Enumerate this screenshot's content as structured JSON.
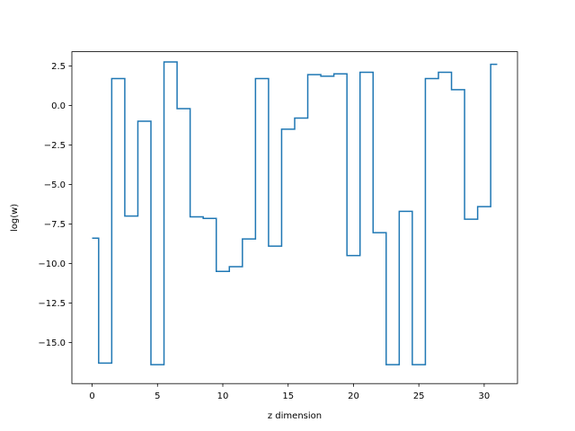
{
  "chart_data": {
    "type": "line",
    "drawstyle": "steps-mid",
    "title": "",
    "xlabel": "z dimension",
    "ylabel": "log(w)",
    "xlim": [
      -1.55,
      32.55
    ],
    "ylim": [
      -17.6,
      3.4
    ],
    "xticks": [
      0,
      5,
      10,
      15,
      20,
      25,
      30
    ],
    "yticks": [
      2.5,
      0.0,
      -2.5,
      -5.0,
      -7.5,
      -10.0,
      -12.5,
      -15.0
    ],
    "ytick_labels": [
      "2.5",
      "0.0",
      "−2.5",
      "−5.0",
      "−7.5",
      "−10.0",
      "−12.5",
      "−15.0"
    ],
    "grid": false,
    "legend": "none",
    "line_color": "#1f77b4",
    "x": [
      0,
      1,
      2,
      3,
      4,
      5,
      6,
      7,
      8,
      9,
      10,
      11,
      12,
      13,
      14,
      15,
      16,
      17,
      18,
      19,
      20,
      21,
      22,
      23,
      24,
      25,
      26,
      27,
      28,
      29,
      30,
      31
    ],
    "y": [
      -8.4,
      -16.3,
      1.7,
      -7.0,
      -1.0,
      -16.4,
      2.75,
      -0.2,
      -7.05,
      -7.15,
      -10.5,
      -10.2,
      -8.45,
      1.7,
      -8.9,
      -1.5,
      -0.8,
      1.95,
      1.85,
      2.0,
      -9.5,
      2.1,
      -8.05,
      -16.4,
      -6.7,
      -16.4,
      1.7,
      2.1,
      1.0,
      -7.2,
      -6.4,
      2.6
    ]
  }
}
